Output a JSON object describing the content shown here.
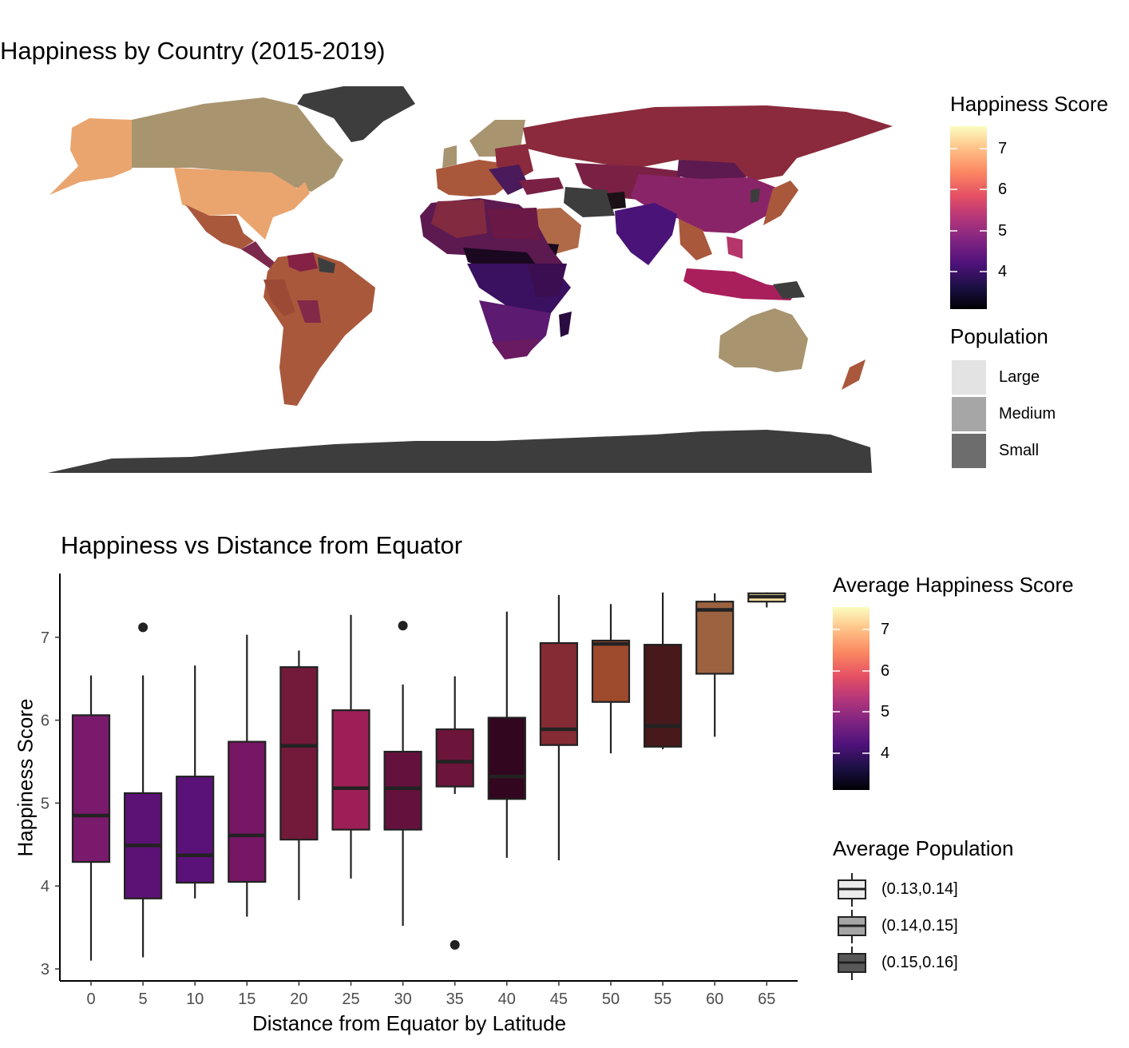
{
  "map_panel": {
    "title": "Happiness by Country (2015-2019)",
    "fill_legend_title": "Happiness Score",
    "fill_legend_ticks": [
      "4",
      "5",
      "6",
      "7"
    ],
    "pop_legend_title": "Population",
    "pop_legend_items": [
      {
        "label": "Large",
        "color": "#e3e3e3"
      },
      {
        "label": "Medium",
        "color": "#a6a6a6"
      },
      {
        "label": "Small",
        "color": "#6d6d6d"
      }
    ]
  },
  "box_panel": {
    "fill_legend_title": "Average Happiness Score",
    "fill_legend_ticks": [
      "4",
      "5",
      "6",
      "7"
    ],
    "pop_legend_title": "Average Population",
    "pop_legend_items": [
      {
        "label": "(0.13,0.14]",
        "color": "#ececec"
      },
      {
        "label": "(0.14,0.15]",
        "color": "#a6a6a6"
      },
      {
        "label": "(0.15,0.16]",
        "color": "#585858"
      }
    ]
  },
  "colors": {
    "magma_scale": [
      "#000004",
      "#1c1044",
      "#4f127b",
      "#812581",
      "#b5367a",
      "#e55064",
      "#fb8761",
      "#fec287",
      "#fcfdbf"
    ],
    "no_data_land": "#3d3d3d"
  },
  "chart_data": [
    {
      "type": "map",
      "title": "Happiness by Country (2015-2019)",
      "legend": [
        "Happiness Score",
        "Population"
      ]
    },
    {
      "type": "box",
      "title": "Happiness vs Distance from Equator",
      "xlabel": "Distance from Equator by Latitude",
      "ylabel": "Happiness Score",
      "ylim": [
        2.95,
        7.75
      ],
      "y_ticks": [
        3,
        4,
        5,
        6,
        7
      ],
      "categories": [
        "0",
        "5",
        "10",
        "15",
        "20",
        "25",
        "30",
        "35",
        "40",
        "45",
        "50",
        "55",
        "60",
        "65"
      ],
      "boxes": [
        {
          "x": "0",
          "min": 3.1,
          "q1": 4.29,
          "median": 4.85,
          "q3": 6.06,
          "max": 6.54,
          "fill": "#7a1a6c",
          "outliers": []
        },
        {
          "x": "5",
          "min": 3.14,
          "q1": 3.85,
          "median": 4.49,
          "q3": 5.12,
          "max": 6.54,
          "fill": "#5c1274",
          "outliers": [
            7.12
          ]
        },
        {
          "x": "10",
          "min": 3.85,
          "q1": 4.04,
          "median": 4.37,
          "q3": 5.32,
          "max": 6.66,
          "fill": "#5a1178",
          "outliers": []
        },
        {
          "x": "15",
          "min": 3.63,
          "q1": 4.05,
          "median": 4.61,
          "q3": 5.74,
          "max": 7.03,
          "fill": "#761665",
          "outliers": []
        },
        {
          "x": "20",
          "min": 3.83,
          "q1": 4.56,
          "median": 5.69,
          "q3": 6.64,
          "max": 6.84,
          "fill": "#731a3a",
          "outliers": []
        },
        {
          "x": "25",
          "min": 4.09,
          "q1": 4.68,
          "median": 5.18,
          "q3": 6.12,
          "max": 7.27,
          "fill": "#9e1f57",
          "outliers": []
        },
        {
          "x": "30",
          "min": 3.52,
          "q1": 4.68,
          "median": 5.18,
          "q3": 5.62,
          "max": 6.43,
          "fill": "#64113e",
          "outliers": [
            7.14
          ]
        },
        {
          "x": "35",
          "min": 5.11,
          "q1": 5.2,
          "median": 5.5,
          "q3": 5.89,
          "max": 6.53,
          "fill": "#6c1439",
          "outliers": [
            3.29
          ]
        },
        {
          "x": "40",
          "min": 4.34,
          "q1": 5.05,
          "median": 5.32,
          "q3": 6.03,
          "max": 7.31,
          "fill": "#33061f",
          "outliers": []
        },
        {
          "x": "45",
          "min": 4.31,
          "q1": 5.7,
          "median": 5.89,
          "q3": 6.93,
          "max": 7.51,
          "fill": "#852b34",
          "outliers": []
        },
        {
          "x": "50",
          "min": 5.6,
          "q1": 6.22,
          "median": 6.92,
          "q3": 6.96,
          "max": 7.4,
          "fill": "#9e4a2c",
          "outliers": []
        },
        {
          "x": "55",
          "min": 5.65,
          "q1": 5.68,
          "median": 5.93,
          "q3": 6.91,
          "max": 7.54,
          "fill": "#47191a",
          "outliers": []
        },
        {
          "x": "60",
          "min": 5.8,
          "q1": 6.56,
          "median": 7.33,
          "q3": 7.43,
          "max": 7.53,
          "fill": "#9c6341",
          "outliers": []
        },
        {
          "x": "65",
          "min": 7.36,
          "q1": 7.43,
          "median": 7.49,
          "q3": 7.53,
          "max": 7.54,
          "fill": "#f3df9b",
          "outliers": []
        }
      ]
    }
  ]
}
